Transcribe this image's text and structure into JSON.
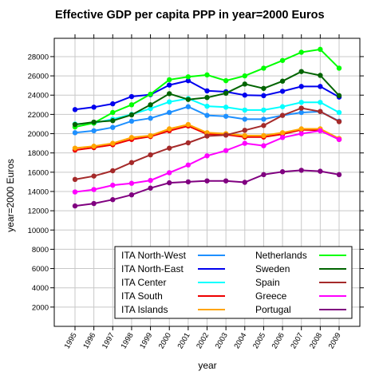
{
  "chart_data": {
    "type": "line",
    "title": "Effective GDP per capita PPP in year=2000 Euros",
    "xlabel": "year",
    "ylabel": "year=2000 Euros",
    "x": [
      1995,
      1996,
      1997,
      1998,
      1999,
      2000,
      2001,
      2002,
      2003,
      2004,
      2005,
      2006,
      2007,
      2008,
      2009
    ],
    "xlim": [
      1993.9,
      2010.1
    ],
    "ylim": [
      0,
      29900
    ],
    "yticks": [
      2000,
      4000,
      6000,
      8000,
      10000,
      12000,
      14000,
      16000,
      18000,
      20000,
      22000,
      24000,
      26000,
      28000
    ],
    "grid": true,
    "legend_position": "bottom-right",
    "series": [
      {
        "name": "ITA North-West",
        "color": "#1e90ff",
        "values": [
          20100,
          20300,
          20650,
          21300,
          21600,
          22200,
          22800,
          21900,
          21800,
          21500,
          21500,
          21900,
          22200,
          22300,
          21300
        ]
      },
      {
        "name": "ITA North-East",
        "color": "#0000ee",
        "values": [
          22500,
          22750,
          23100,
          23850,
          24050,
          25050,
          25500,
          24450,
          24350,
          24000,
          23950,
          24400,
          24900,
          24900,
          23800
        ]
      },
      {
        "name": "ITA Center",
        "color": "#00ffff",
        "values": [
          21000,
          21100,
          21500,
          22000,
          22600,
          23300,
          23650,
          22850,
          22750,
          22450,
          22450,
          22800,
          23250,
          23250,
          22200
        ]
      },
      {
        "name": "ITA South",
        "color": "#ee0000",
        "values": [
          18300,
          18550,
          18850,
          19400,
          19700,
          20300,
          20800,
          19950,
          19900,
          19650,
          19650,
          19950,
          20400,
          20350,
          19400
        ]
      },
      {
        "name": "ITA Islands",
        "color": "#ffa500",
        "values": [
          18500,
          18700,
          19000,
          19600,
          19800,
          20500,
          20950,
          20100,
          20000,
          19800,
          19800,
          20100,
          20500,
          20500,
          19500
        ]
      },
      {
        "name": "Netherlands",
        "color": "#00ff00",
        "values": [
          20700,
          21100,
          22200,
          23000,
          24100,
          25600,
          25900,
          26100,
          25500,
          26000,
          26800,
          27600,
          28450,
          28750,
          26800
        ]
      },
      {
        "name": "Sweden",
        "color": "#006400",
        "values": [
          20950,
          21200,
          21350,
          21950,
          23000,
          24150,
          23550,
          23750,
          24200,
          25150,
          24700,
          25450,
          26450,
          26050,
          23950
        ]
      },
      {
        "name": "Spain",
        "color": "#a52a2a",
        "values": [
          15250,
          15600,
          16150,
          17000,
          17800,
          18500,
          19050,
          19750,
          19850,
          20350,
          20850,
          21900,
          22650,
          22300,
          21250
        ]
      },
      {
        "name": "Greece",
        "color": "#ff00ff",
        "values": [
          13950,
          14200,
          14650,
          14850,
          15150,
          15950,
          16750,
          17700,
          18250,
          19000,
          18750,
          19600,
          20000,
          20300,
          19400
        ]
      },
      {
        "name": "Portugal",
        "color": "#800080",
        "values": [
          12500,
          12750,
          13150,
          13650,
          14350,
          14900,
          15000,
          15100,
          15100,
          14950,
          15750,
          16050,
          16200,
          16100,
          15750
        ]
      }
    ]
  }
}
